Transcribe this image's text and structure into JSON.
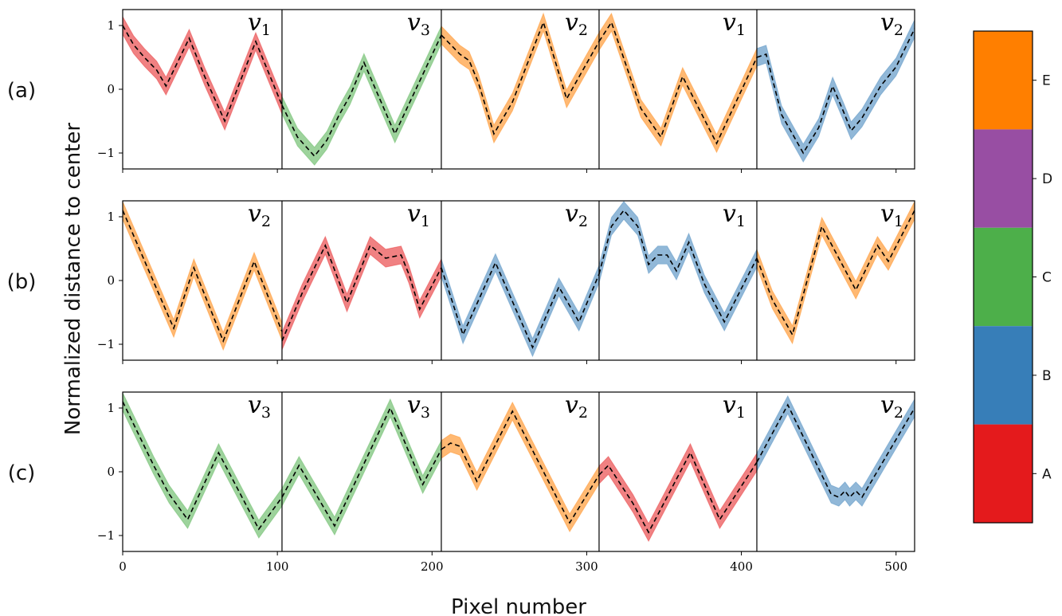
{
  "chart_data": {
    "type": "line",
    "xlabel": "Pixel number",
    "ylabel": "Normalized distance to center",
    "xlim": [
      0,
      512
    ],
    "ylim": [
      -1.25,
      1.25
    ],
    "xticks": [
      0,
      100,
      200,
      300,
      400,
      500
    ],
    "yticks": [
      -1,
      0,
      1
    ],
    "segment_boundaries": [
      0,
      103,
      206,
      308,
      410,
      512
    ],
    "colorbar": {
      "entries": [
        {
          "label": "E",
          "color": "#ff7f00"
        },
        {
          "label": "D",
          "color": "#984ea3"
        },
        {
          "label": "C",
          "color": "#4daf4a"
        },
        {
          "label": "B",
          "color": "#377eb8"
        },
        {
          "label": "A",
          "color": "#e41a1c"
        }
      ]
    },
    "panels": [
      {
        "label": "(a)",
        "segments": [
          {
            "symbol": "v",
            "sub": "1",
            "class": "A",
            "color": "#e41a1c",
            "points": [
              [
                0,
                1.0
              ],
              [
                7,
                0.7
              ],
              [
                14,
                0.5
              ],
              [
                22,
                0.3
              ],
              [
                28,
                0.05
              ],
              [
                43,
                0.8
              ],
              [
                53,
                0.2
              ],
              [
                66,
                -0.5
              ],
              [
                86,
                0.75
              ],
              [
                103,
                -0.25
              ]
            ]
          },
          {
            "symbol": "v",
            "sub": "3",
            "class": "C",
            "color": "#4daf4a",
            "points": [
              [
                103,
                -0.25
              ],
              [
                113,
                -0.75
              ],
              [
                124,
                -1.05
              ],
              [
                132,
                -0.8
              ],
              [
                140,
                -0.4
              ],
              [
                147,
                -0.1
              ],
              [
                156,
                0.42
              ],
              [
                176,
                -0.7
              ],
              [
                206,
                0.85
              ]
            ]
          },
          {
            "symbol": "v",
            "sub": "2",
            "class": "E",
            "color": "#ff7f00",
            "points": [
              [
                206,
                0.85
              ],
              [
                212,
                0.7
              ],
              [
                218,
                0.55
              ],
              [
                224,
                0.45
              ],
              [
                230,
                0.1
              ],
              [
                240,
                -0.7
              ],
              [
                252,
                -0.2
              ],
              [
                272,
                1.05
              ],
              [
                287,
                -0.15
              ],
              [
                308,
                0.75
              ]
            ]
          },
          {
            "symbol": "v",
            "sub": "1",
            "class": "E",
            "color": "#ff7f00",
            "points": [
              [
                308,
                0.75
              ],
              [
                316,
                1.05
              ],
              [
                335,
                -0.3
              ],
              [
                348,
                -0.75
              ],
              [
                362,
                0.2
              ],
              [
                384,
                -0.85
              ],
              [
                410,
                0.5
              ]
            ]
          },
          {
            "symbol": "v",
            "sub": "2",
            "class": "B",
            "color": "#377eb8",
            "points": [
              [
                410,
                0.5
              ],
              [
                416,
                0.55
              ],
              [
                426,
                -0.4
              ],
              [
                440,
                -1.0
              ],
              [
                450,
                -0.6
              ],
              [
                459,
                0.05
              ],
              [
                466,
                -0.35
              ],
              [
                471,
                -0.65
              ],
              [
                478,
                -0.45
              ],
              [
                490,
                0.05
              ],
              [
                500,
                0.35
              ],
              [
                512,
                0.95
              ]
            ]
          }
        ]
      },
      {
        "label": "(b)",
        "segments": [
          {
            "symbol": "v",
            "sub": "2",
            "class": "E",
            "color": "#ff7f00",
            "points": [
              [
                0,
                1.1
              ],
              [
                33,
                -0.75
              ],
              [
                46,
                0.2
              ],
              [
                65,
                -0.95
              ],
              [
                85,
                0.3
              ],
              [
                103,
                -0.8
              ]
            ]
          },
          {
            "symbol": "v",
            "sub": "1",
            "class": "A",
            "color": "#e41a1c",
            "points": [
              [
                103,
                -0.95
              ],
              [
                116,
                -0.2
              ],
              [
                131,
                0.55
              ],
              [
                145,
                -0.35
              ],
              [
                160,
                0.55
              ],
              [
                170,
                0.35
              ],
              [
                180,
                0.4
              ],
              [
                185,
                0.1
              ],
              [
                192,
                -0.45
              ],
              [
                206,
                0.2
              ]
            ]
          },
          {
            "symbol": "v",
            "sub": "2",
            "class": "B",
            "color": "#377eb8",
            "points": [
              [
                206,
                0.2
              ],
              [
                220,
                -0.85
              ],
              [
                241,
                0.28
              ],
              [
                265,
                -1.05
              ],
              [
                282,
                -0.1
              ],
              [
                295,
                -0.65
              ],
              [
                308,
                0.1
              ]
            ]
          },
          {
            "symbol": "v",
            "sub": "1",
            "class": "B",
            "color": "#377eb8",
            "points": [
              [
                308,
                0.1
              ],
              [
                316,
                0.85
              ],
              [
                324,
                1.1
              ],
              [
                333,
                0.85
              ],
              [
                340,
                0.25
              ],
              [
                346,
                0.4
              ],
              [
                352,
                0.4
              ],
              [
                358,
                0.15
              ],
              [
                366,
                0.6
              ],
              [
                376,
                -0.05
              ],
              [
                389,
                -0.65
              ],
              [
                410,
                0.35
              ]
            ]
          },
          {
            "symbol": "v",
            "sub": "1",
            "class": "E",
            "color": "#ff7f00",
            "points": [
              [
                410,
                0.35
              ],
              [
                420,
                -0.3
              ],
              [
                433,
                -0.85
              ],
              [
                452,
                0.85
              ],
              [
                474,
                -0.15
              ],
              [
                488,
                0.55
              ],
              [
                495,
                0.3
              ],
              [
                512,
                1.1
              ]
            ]
          }
        ]
      },
      {
        "label": "(c)",
        "segments": [
          {
            "symbol": "v",
            "sub": "3",
            "class": "C",
            "color": "#4daf4a",
            "points": [
              [
                0,
                1.1
              ],
              [
                11,
                0.55
              ],
              [
                20,
                0.1
              ],
              [
                30,
                -0.35
              ],
              [
                42,
                -0.75
              ],
              [
                62,
                0.3
              ],
              [
                88,
                -0.9
              ],
              [
                103,
                -0.4
              ]
            ]
          },
          {
            "symbol": "v",
            "sub": "3",
            "class": "C",
            "color": "#4daf4a",
            "points": [
              [
                103,
                -0.4
              ],
              [
                114,
                0.1
              ],
              [
                137,
                -0.85
              ],
              [
                173,
                1.0
              ],
              [
                194,
                -0.2
              ],
              [
                206,
                0.35
              ]
            ]
          },
          {
            "symbol": "v",
            "sub": "2",
            "class": "E",
            "color": "#ff7f00",
            "points": [
              [
                206,
                0.35
              ],
              [
                212,
                0.45
              ],
              [
                218,
                0.4
              ],
              [
                229,
                -0.15
              ],
              [
                252,
                0.95
              ],
              [
                289,
                -0.8
              ],
              [
                308,
                -0.05
              ]
            ]
          },
          {
            "symbol": "v",
            "sub": "1",
            "class": "A",
            "color": "#e41a1c",
            "points": [
              [
                308,
                -0.05
              ],
              [
                314,
                0.1
              ],
              [
                330,
                -0.5
              ],
              [
                340,
                -0.95
              ],
              [
                367,
                0.3
              ],
              [
                386,
                -0.75
              ],
              [
                410,
                0.15
              ]
            ]
          },
          {
            "symbol": "v",
            "sub": "2",
            "class": "B",
            "color": "#377eb8",
            "points": [
              [
                410,
                0.15
              ],
              [
                430,
                1.05
              ],
              [
                458,
                -0.35
              ],
              [
                463,
                -0.4
              ],
              [
                467,
                -0.3
              ],
              [
                470,
                -0.4
              ],
              [
                474,
                -0.3
              ],
              [
                478,
                -0.4
              ],
              [
                512,
                1.0
              ]
            ]
          }
        ]
      }
    ]
  }
}
